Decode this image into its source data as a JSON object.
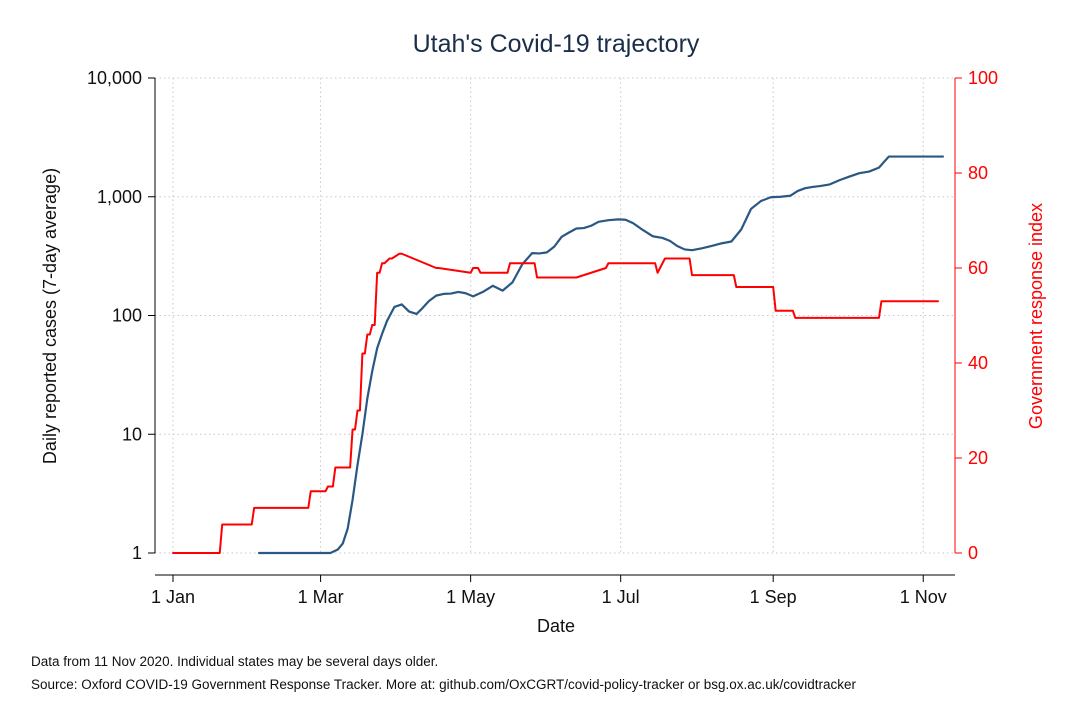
{
  "chart_data": {
    "type": "line",
    "title": "Utah's Covid-19 trajectory",
    "xlabel": "Date",
    "ylabel_left": "Daily reported cases (7-day average)",
    "ylabel_right": "Government response index",
    "x_ticks": [
      "1 Jan",
      "1 Mar",
      "1 May",
      "1 Jul",
      "1 Sep",
      "1 Nov"
    ],
    "y_left_ticks": [
      "1",
      "10",
      "100",
      "1,000",
      "10,000"
    ],
    "y_left_scale": "log",
    "y_left_range": [
      1,
      10000
    ],
    "y_right_ticks": [
      "0",
      "20",
      "40",
      "60",
      "80",
      "100"
    ],
    "y_right_range": [
      0,
      100
    ],
    "grid": true,
    "colors": {
      "cases": "#2a5783",
      "response": "#ff0000",
      "grid": "#c8c8c8"
    },
    "series": [
      {
        "axis": "left",
        "x": [
          "2020-02-05",
          "2020-02-15",
          "2020-02-25",
          "2020-03-05",
          "2020-03-08",
          "2020-03-10",
          "2020-03-12",
          "2020-03-14",
          "2020-03-16",
          "2020-03-18",
          "2020-03-20",
          "2020-03-22",
          "2020-03-24",
          "2020-03-26",
          "2020-03-28",
          "2020-03-31",
          "2020-04-03",
          "2020-04-06",
          "2020-04-09",
          "2020-04-11",
          "2020-04-14",
          "2020-04-17",
          "2020-04-20",
          "2020-04-23",
          "2020-04-26",
          "2020-04-29",
          "2020-05-02",
          "2020-05-06",
          "2020-05-10",
          "2020-05-14",
          "2020-05-18",
          "2020-05-22",
          "2020-05-26",
          "2020-05-29",
          "2020-06-01",
          "2020-06-04",
          "2020-06-07",
          "2020-06-10",
          "2020-06-13",
          "2020-06-16",
          "2020-06-19",
          "2020-06-22",
          "2020-06-26",
          "2020-06-30",
          "2020-07-03",
          "2020-07-06",
          "2020-07-10",
          "2020-07-14",
          "2020-07-18",
          "2020-07-21",
          "2020-07-24",
          "2020-07-27",
          "2020-07-30",
          "2020-08-03",
          "2020-08-07",
          "2020-08-11",
          "2020-08-15",
          "2020-08-19",
          "2020-08-23",
          "2020-08-27",
          "2020-08-31",
          "2020-09-04",
          "2020-09-08",
          "2020-09-11",
          "2020-09-14",
          "2020-09-17",
          "2020-09-20",
          "2020-09-24",
          "2020-09-28",
          "2020-10-02",
          "2020-10-06",
          "2020-10-10",
          "2020-10-14",
          "2020-10-18",
          "2020-10-22",
          "2020-10-26",
          "2020-10-30",
          "2020-11-03",
          "2020-11-07",
          "2020-11-09"
        ],
        "values": [
          1,
          1,
          1,
          1,
          1.07,
          1.2,
          1.6,
          2.8,
          5.5,
          10,
          20,
          34,
          53,
          70,
          90,
          118,
          124,
          108,
          103,
          113,
          132,
          147,
          152,
          153,
          158,
          154,
          145,
          158,
          178,
          162,
          190,
          270,
          335,
          333,
          340,
          380,
          460,
          500,
          540,
          545,
          570,
          615,
          635,
          645,
          640,
          600,
          525,
          465,
          450,
          425,
          385,
          360,
          355,
          368,
          385,
          405,
          420,
          530,
          790,
          920,
          990,
          1000,
          1020,
          1120,
          1180,
          1210,
          1230,
          1270,
          1380,
          1480,
          1580,
          1630,
          1760,
          2180,
          2180,
          2180,
          2180,
          2180,
          2180,
          2180
        ]
      },
      {
        "axis": "right",
        "x": [
          "2020-01-01",
          "2020-01-20",
          "2020-01-21",
          "2020-02-02",
          "2020-02-03",
          "2020-02-25",
          "2020-02-26",
          "2020-03-03",
          "2020-03-04",
          "2020-03-06",
          "2020-03-07",
          "2020-03-13",
          "2020-03-14",
          "2020-03-15",
          "2020-03-16",
          "2020-03-17",
          "2020-03-18",
          "2020-03-19",
          "2020-03-20",
          "2020-03-21",
          "2020-03-22",
          "2020-03-23",
          "2020-03-24",
          "2020-03-25",
          "2020-03-26",
          "2020-03-27",
          "2020-03-29",
          "2020-03-30",
          "2020-04-02",
          "2020-04-03",
          "2020-04-17",
          "2020-04-18",
          "2020-05-01",
          "2020-05-02",
          "2020-05-04",
          "2020-05-05",
          "2020-05-16",
          "2020-05-17",
          "2020-05-27",
          "2020-05-28",
          "2020-06-12",
          "2020-06-13",
          "2020-06-25",
          "2020-06-26",
          "2020-06-28",
          "2020-06-29",
          "2020-07-15",
          "2020-07-16",
          "2020-07-18",
          "2020-07-19",
          "2020-07-20",
          "2020-07-21",
          "2020-07-29",
          "2020-07-30",
          "2020-08-16",
          "2020-08-17",
          "2020-09-01",
          "2020-09-02",
          "2020-09-09",
          "2020-09-10",
          "2020-10-14",
          "2020-10-15",
          "2020-11-07"
        ],
        "values": [
          0,
          0,
          6,
          6,
          9.5,
          9.5,
          13,
          13,
          14,
          14,
          18,
          18,
          26,
          26,
          30,
          30,
          42,
          42,
          46,
          46,
          48,
          48,
          59,
          59,
          61,
          61,
          62,
          62,
          63,
          63,
          60,
          60,
          59,
          60,
          60,
          59,
          59,
          61,
          61,
          58,
          58,
          58,
          60,
          61,
          61,
          61,
          61,
          59,
          61,
          62,
          62,
          62,
          62,
          58.5,
          58.5,
          56,
          56,
          51,
          51,
          49.5,
          49.5,
          53,
          53
        ]
      }
    ]
  },
  "footnotes": {
    "line1": "Data from 11 Nov 2020. Individual states may be several days older.",
    "line2": "Source: Oxford COVID-19 Government Response Tracker. More at: github.com/OxCGRT/covid-policy-tracker or bsg.ox.ac.uk/covidtracker"
  }
}
